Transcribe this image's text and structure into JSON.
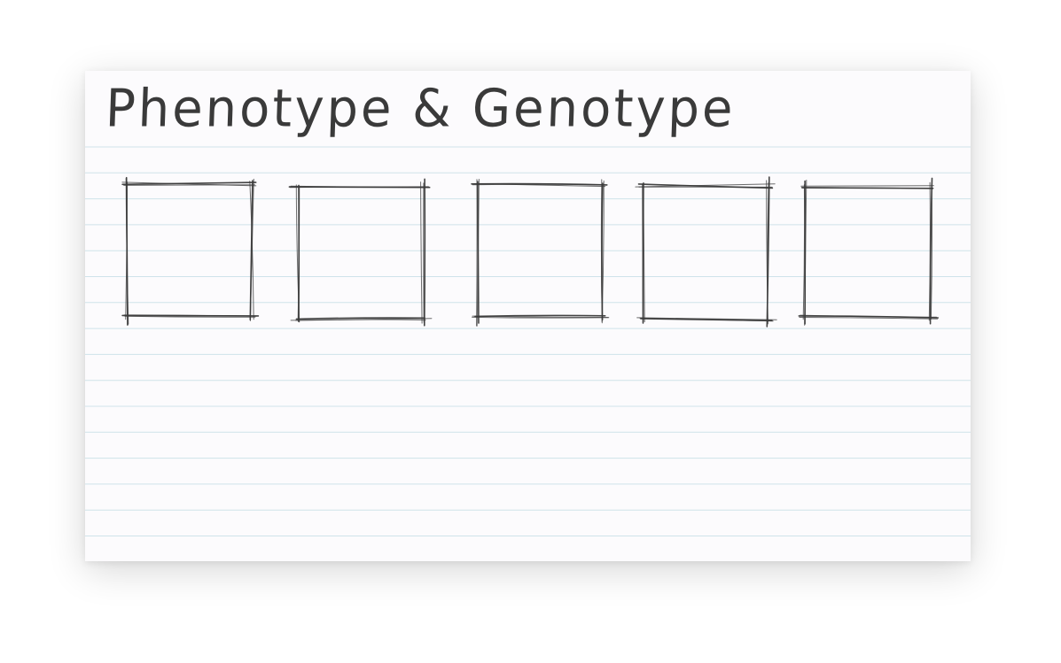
{
  "card": {
    "title": "Phenotype & Genotype"
  },
  "boxes": [
    {
      "id": "box-1",
      "content": ""
    },
    {
      "id": "box-2",
      "content": ""
    },
    {
      "id": "box-3",
      "content": ""
    },
    {
      "id": "box-4",
      "content": ""
    },
    {
      "id": "box-5",
      "content": ""
    }
  ],
  "colors": {
    "card_background": "#fcfbfd",
    "ruled_line": "#cfe3ea",
    "ink": "#3a3a3a"
  }
}
